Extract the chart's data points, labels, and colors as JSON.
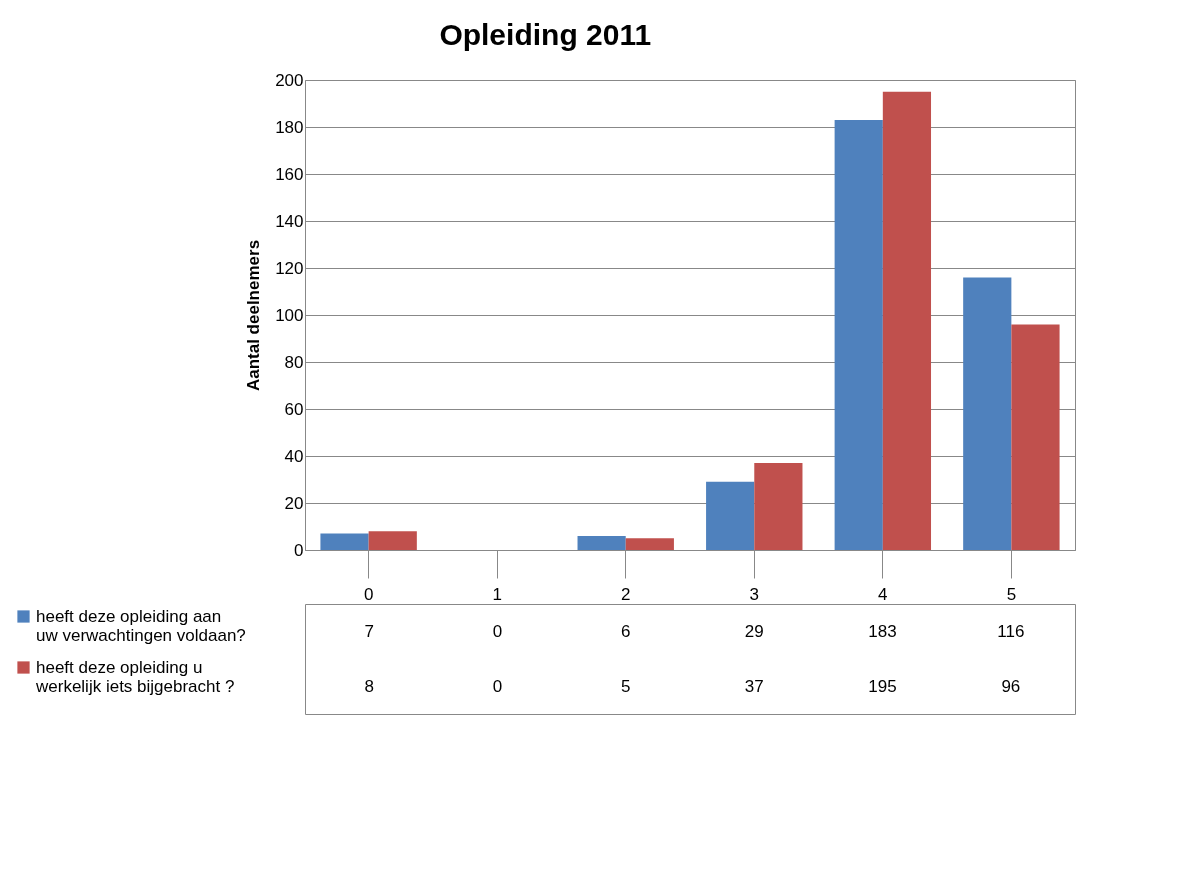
{
  "chart_data": {
    "type": "bar",
    "title": "Opleiding 2011",
    "ylabel": "Aantal deelnemers",
    "categories": [
      "0",
      "1",
      "2",
      "3",
      "4",
      "5"
    ],
    "series": [
      {
        "name": "heeft deze opleiding aan uw verwachtingen voldaan?",
        "color": "#4f81bd",
        "values": [
          7,
          0,
          6,
          29,
          183,
          116
        ]
      },
      {
        "name": "heeft deze opleiding u werkelijk iets bijgebracht ?",
        "color": "#c0504d",
        "values": [
          8,
          0,
          5,
          37,
          195,
          96
        ]
      }
    ],
    "ylim": [
      0,
      200
    ],
    "yticks": [
      0,
      20,
      40,
      60,
      80,
      100,
      120,
      140,
      160,
      180,
      200
    ],
    "grid": "y",
    "legend": "bottom",
    "data_labels": true
  }
}
